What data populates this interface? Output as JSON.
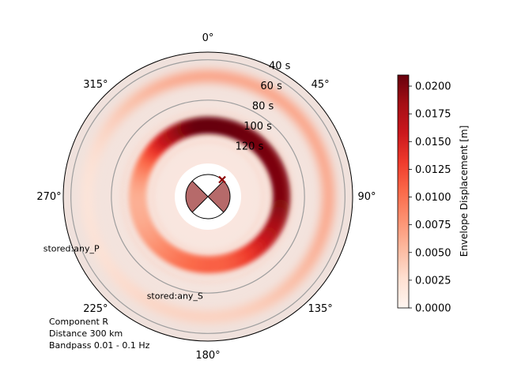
{
  "chart_data": {
    "type": "heatmap",
    "projection": "polar",
    "theta_direction": "clockwise",
    "theta_zero": "north",
    "angle_ticks": [
      "0°",
      "45°",
      "90°",
      "135°",
      "180°",
      "225°",
      "270°",
      "315°"
    ],
    "radial_axis": {
      "quantity": "time",
      "ticks": [
        {
          "label": "40 s",
          "value": 40
        },
        {
          "label": "60 s",
          "value": 60
        },
        {
          "label": "80 s",
          "value": 80
        },
        {
          "label": "100 s",
          "value": 100
        },
        {
          "label": "120 s",
          "value": 120
        }
      ],
      "range": [
        38,
        140
      ],
      "inverted": true
    },
    "phase_curves": [
      {
        "label": "stored:any_P",
        "time": 45
      },
      {
        "label": "stored:any_S",
        "time": 82
      }
    ],
    "envelope_peaks": [
      {
        "azimuth": 0,
        "time": 105,
        "value": 0.021
      },
      {
        "azimuth": 90,
        "time": 103,
        "value": 0.02
      },
      {
        "azimuth": 180,
        "time": 108,
        "value": 0.011
      },
      {
        "azimuth": 270,
        "time": 106,
        "value": 0.006
      }
    ],
    "colorbar": {
      "label": "Envelope Displacement [m]",
      "ticks": [
        "0.0000",
        "0.0025",
        "0.0050",
        "0.0075",
        "0.0100",
        "0.0125",
        "0.0150",
        "0.0175",
        "0.0200"
      ],
      "range": [
        0,
        0.021
      ],
      "colormap": "Reds",
      "colors": [
        "#fff5f0",
        "#fee0d2",
        "#fcbba1",
        "#fc9272",
        "#fb6a4a",
        "#ef3b2c",
        "#cb181d",
        "#a50f15",
        "#67000d"
      ]
    },
    "annotations": [
      "Component R",
      "Distance 300 km",
      "Bandpass 0.01 - 0.1 Hz"
    ],
    "beachball": {
      "fill": "#b66a6a",
      "marker_azimuth": 40,
      "marker_color": "#8b0000"
    }
  }
}
